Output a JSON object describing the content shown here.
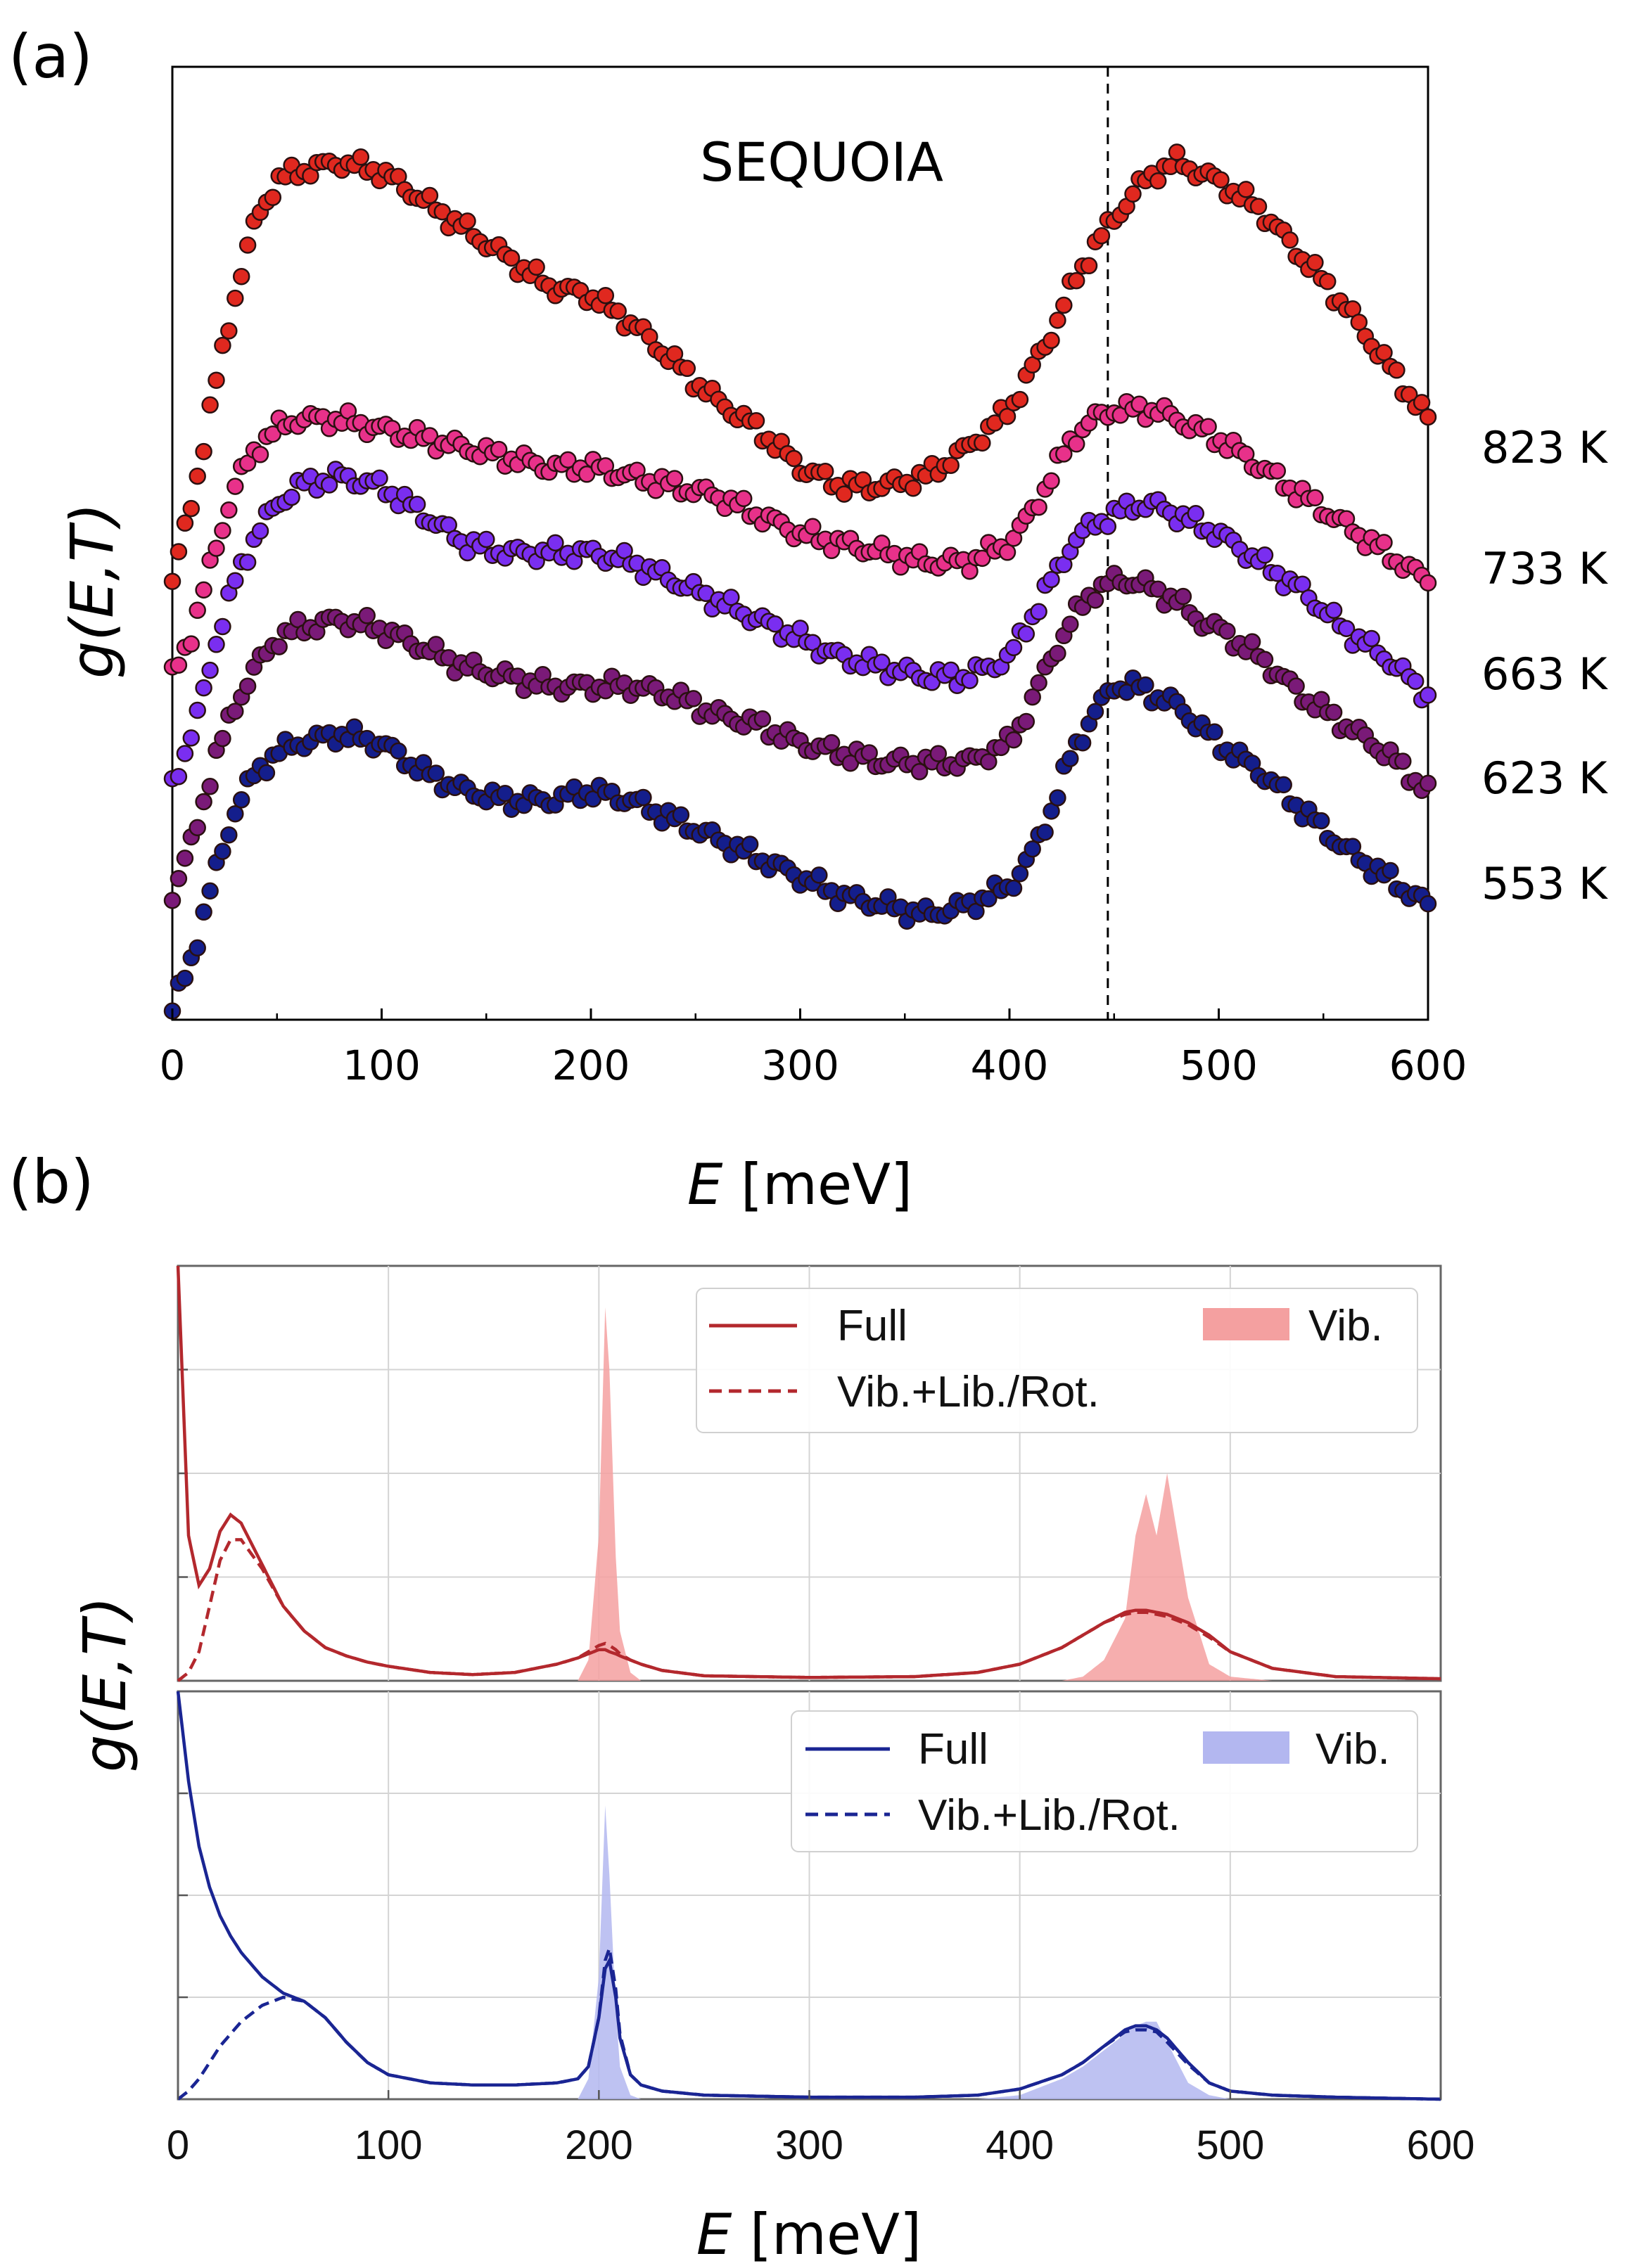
{
  "chart_data": [
    {
      "panel": "(a)",
      "type": "scatter",
      "title": "SEQUOIA",
      "xlabel_italic": "E",
      "xlabel_unit": " [meV]",
      "ylabel": "g(E,T)",
      "xlim": [
        0,
        600
      ],
      "xticks": [
        "0",
        "100",
        "200",
        "300",
        "400",
        "500",
        "600"
      ],
      "ylim": [
        0,
        1
      ],
      "y_ticks_labeled": false,
      "reference_line_x": 447,
      "x": [
        0,
        10,
        20,
        30,
        40,
        50,
        60,
        80,
        100,
        120,
        140,
        160,
        180,
        200,
        220,
        240,
        260,
        280,
        300,
        320,
        340,
        360,
        380,
        400,
        410,
        420,
        430,
        440,
        450,
        460,
        470,
        480,
        490,
        500,
        520,
        540,
        560,
        580,
        600
      ],
      "series": [
        {
          "name": "823 K",
          "color": "#e0281f",
          "values": [
            0.46,
            0.55,
            0.66,
            0.76,
            0.84,
            0.88,
            0.89,
            0.9,
            0.89,
            0.86,
            0.83,
            0.8,
            0.77,
            0.76,
            0.73,
            0.69,
            0.65,
            0.62,
            0.58,
            0.56,
            0.56,
            0.57,
            0.6,
            0.64,
            0.68,
            0.72,
            0.77,
            0.81,
            0.84,
            0.87,
            0.89,
            0.9,
            0.89,
            0.88,
            0.85,
            0.8,
            0.75,
            0.69,
            0.63
          ]
        },
        {
          "name": "733 K",
          "color": "#e8318a",
          "values": [
            0.36,
            0.41,
            0.49,
            0.56,
            0.6,
            0.62,
            0.63,
            0.63,
            0.62,
            0.61,
            0.6,
            0.59,
            0.58,
            0.58,
            0.57,
            0.56,
            0.55,
            0.53,
            0.51,
            0.5,
            0.49,
            0.48,
            0.48,
            0.5,
            0.53,
            0.57,
            0.61,
            0.63,
            0.64,
            0.64,
            0.64,
            0.63,
            0.62,
            0.61,
            0.58,
            0.55,
            0.52,
            0.49,
            0.46
          ]
        },
        {
          "name": "663 K",
          "color": "#7a2ef0",
          "values": [
            0.25,
            0.3,
            0.39,
            0.46,
            0.51,
            0.54,
            0.56,
            0.57,
            0.56,
            0.53,
            0.5,
            0.49,
            0.49,
            0.49,
            0.48,
            0.46,
            0.44,
            0.42,
            0.4,
            0.38,
            0.37,
            0.36,
            0.36,
            0.38,
            0.42,
            0.46,
            0.5,
            0.52,
            0.53,
            0.54,
            0.54,
            0.53,
            0.52,
            0.51,
            0.48,
            0.45,
            0.41,
            0.38,
            0.34
          ]
        },
        {
          "name": "623 K",
          "color": "#7a1a78",
          "values": [
            0.13,
            0.19,
            0.27,
            0.33,
            0.37,
            0.4,
            0.41,
            0.42,
            0.41,
            0.39,
            0.37,
            0.36,
            0.35,
            0.35,
            0.35,
            0.34,
            0.32,
            0.31,
            0.29,
            0.28,
            0.27,
            0.27,
            0.27,
            0.29,
            0.33,
            0.38,
            0.42,
            0.45,
            0.46,
            0.46,
            0.45,
            0.44,
            0.42,
            0.41,
            0.38,
            0.34,
            0.31,
            0.28,
            0.24
          ]
        },
        {
          "name": "553 K",
          "color": "#141e8c",
          "values": [
            0.01,
            0.07,
            0.15,
            0.22,
            0.26,
            0.28,
            0.29,
            0.3,
            0.29,
            0.26,
            0.24,
            0.23,
            0.23,
            0.24,
            0.23,
            0.21,
            0.19,
            0.17,
            0.15,
            0.13,
            0.12,
            0.11,
            0.12,
            0.14,
            0.17,
            0.22,
            0.28,
            0.32,
            0.35,
            0.35,
            0.34,
            0.33,
            0.31,
            0.29,
            0.26,
            0.22,
            0.18,
            0.15,
            0.12
          ]
        }
      ]
    },
    {
      "panel": "(b)",
      "type": "line",
      "xlabel_italic": "E",
      "xlabel_unit": " [meV]",
      "ylabel": "g(E,T)",
      "xlim": [
        0,
        600
      ],
      "xticks": [
        "0",
        "100",
        "200",
        "300",
        "400",
        "500",
        "600"
      ],
      "x": [
        0,
        5,
        10,
        15,
        20,
        25,
        30,
        40,
        50,
        60,
        70,
        80,
        90,
        100,
        120,
        140,
        160,
        180,
        190,
        195,
        200,
        203,
        205,
        208,
        210,
        215,
        220,
        230,
        250,
        300,
        350,
        380,
        400,
        420,
        430,
        440,
        450,
        455,
        460,
        465,
        470,
        480,
        490,
        500,
        520,
        550,
        600
      ],
      "subplots": [
        {
          "name": "top",
          "color": "#b3282d",
          "fill_color": "#f4a0a0",
          "ylim": [
            0,
            1.0
          ],
          "legend": {
            "full": "Full",
            "vib": "Vib.",
            "vib_lib_rot": "Vib.+Lib./Rot."
          },
          "series": [
            {
              "name": "Full",
              "style": "solid",
              "values": [
                1.0,
                0.35,
                0.23,
                0.27,
                0.36,
                0.4,
                0.38,
                0.28,
                0.18,
                0.12,
                0.08,
                0.06,
                0.045,
                0.035,
                0.02,
                0.015,
                0.02,
                0.04,
                0.055,
                0.065,
                0.075,
                0.075,
                0.07,
                0.065,
                0.06,
                0.05,
                0.04,
                0.025,
                0.012,
                0.008,
                0.01,
                0.02,
                0.04,
                0.08,
                0.11,
                0.14,
                0.165,
                0.17,
                0.17,
                0.165,
                0.16,
                0.14,
                0.11,
                0.07,
                0.03,
                0.01,
                0.005
              ]
            },
            {
              "name": "Vib.+Lib./Rot.",
              "style": "dashed",
              "values": [
                0.0,
                0.02,
                0.07,
                0.18,
                0.29,
                0.34,
                0.34,
                0.27,
                0.18,
                0.12,
                0.08,
                0.06,
                0.045,
                0.035,
                0.02,
                0.015,
                0.02,
                0.04,
                0.055,
                0.07,
                0.085,
                0.09,
                0.085,
                0.075,
                0.065,
                0.05,
                0.04,
                0.025,
                0.012,
                0.008,
                0.01,
                0.02,
                0.04,
                0.08,
                0.11,
                0.14,
                0.16,
                0.165,
                0.165,
                0.16,
                0.155,
                0.135,
                0.105,
                0.07,
                0.03,
                0.01,
                0.005
              ]
            },
            {
              "name": "Vib.",
              "style": "filled",
              "values": [
                0,
                0,
                0,
                0,
                0,
                0,
                0,
                0,
                0,
                0,
                0,
                0,
                0,
                0,
                0,
                0,
                0,
                0,
                0.0,
                0.05,
                0.35,
                0.9,
                0.75,
                0.3,
                0.12,
                0.02,
                0,
                0,
                0,
                0,
                0,
                0,
                0,
                0,
                0.01,
                0.05,
                0.15,
                0.35,
                0.45,
                0.35,
                0.5,
                0.2,
                0.04,
                0.01,
                0,
                0,
                0
              ]
            }
          ]
        },
        {
          "name": "bottom",
          "color": "#1a2593",
          "fill_color": "#b3b7f0",
          "ylim": [
            0,
            1.0
          ],
          "legend": {
            "full": "Full",
            "vib": "Vib.",
            "vib_lib_rot": "Vib.+Lib./Rot."
          },
          "series": [
            {
              "name": "Full",
              "style": "solid",
              "values": [
                1.0,
                0.78,
                0.62,
                0.52,
                0.45,
                0.4,
                0.36,
                0.3,
                0.26,
                0.24,
                0.2,
                0.14,
                0.09,
                0.06,
                0.04,
                0.035,
                0.035,
                0.04,
                0.05,
                0.08,
                0.2,
                0.32,
                0.34,
                0.25,
                0.15,
                0.06,
                0.035,
                0.02,
                0.01,
                0.005,
                0.005,
                0.01,
                0.025,
                0.06,
                0.09,
                0.13,
                0.17,
                0.18,
                0.18,
                0.17,
                0.15,
                0.09,
                0.04,
                0.02,
                0.01,
                0.005,
                0.0
              ]
            },
            {
              "name": "Vib.+Lib./Rot.",
              "style": "dashed",
              "values": [
                0.0,
                0.02,
                0.05,
                0.09,
                0.13,
                0.16,
                0.19,
                0.23,
                0.25,
                0.24,
                0.2,
                0.14,
                0.09,
                0.06,
                0.04,
                0.035,
                0.035,
                0.04,
                0.05,
                0.08,
                0.2,
                0.34,
                0.37,
                0.27,
                0.16,
                0.06,
                0.035,
                0.02,
                0.01,
                0.005,
                0.005,
                0.01,
                0.025,
                0.06,
                0.09,
                0.13,
                0.165,
                0.17,
                0.17,
                0.165,
                0.14,
                0.085,
                0.04,
                0.02,
                0.01,
                0.005,
                0.0
              ]
            },
            {
              "name": "Vib.",
              "style": "filled",
              "values": [
                0,
                0,
                0,
                0,
                0,
                0,
                0,
                0,
                0,
                0,
                0,
                0,
                0,
                0,
                0,
                0,
                0,
                0,
                0.0,
                0.05,
                0.3,
                0.72,
                0.55,
                0.22,
                0.08,
                0.01,
                0,
                0,
                0,
                0,
                0,
                0,
                0.01,
                0.05,
                0.08,
                0.12,
                0.16,
                0.18,
                0.19,
                0.19,
                0.14,
                0.04,
                0.01,
                0,
                0,
                0,
                0
              ]
            }
          ]
        }
      ]
    }
  ],
  "labels": {
    "panel_a": "(a)",
    "panel_b": "(b)"
  }
}
